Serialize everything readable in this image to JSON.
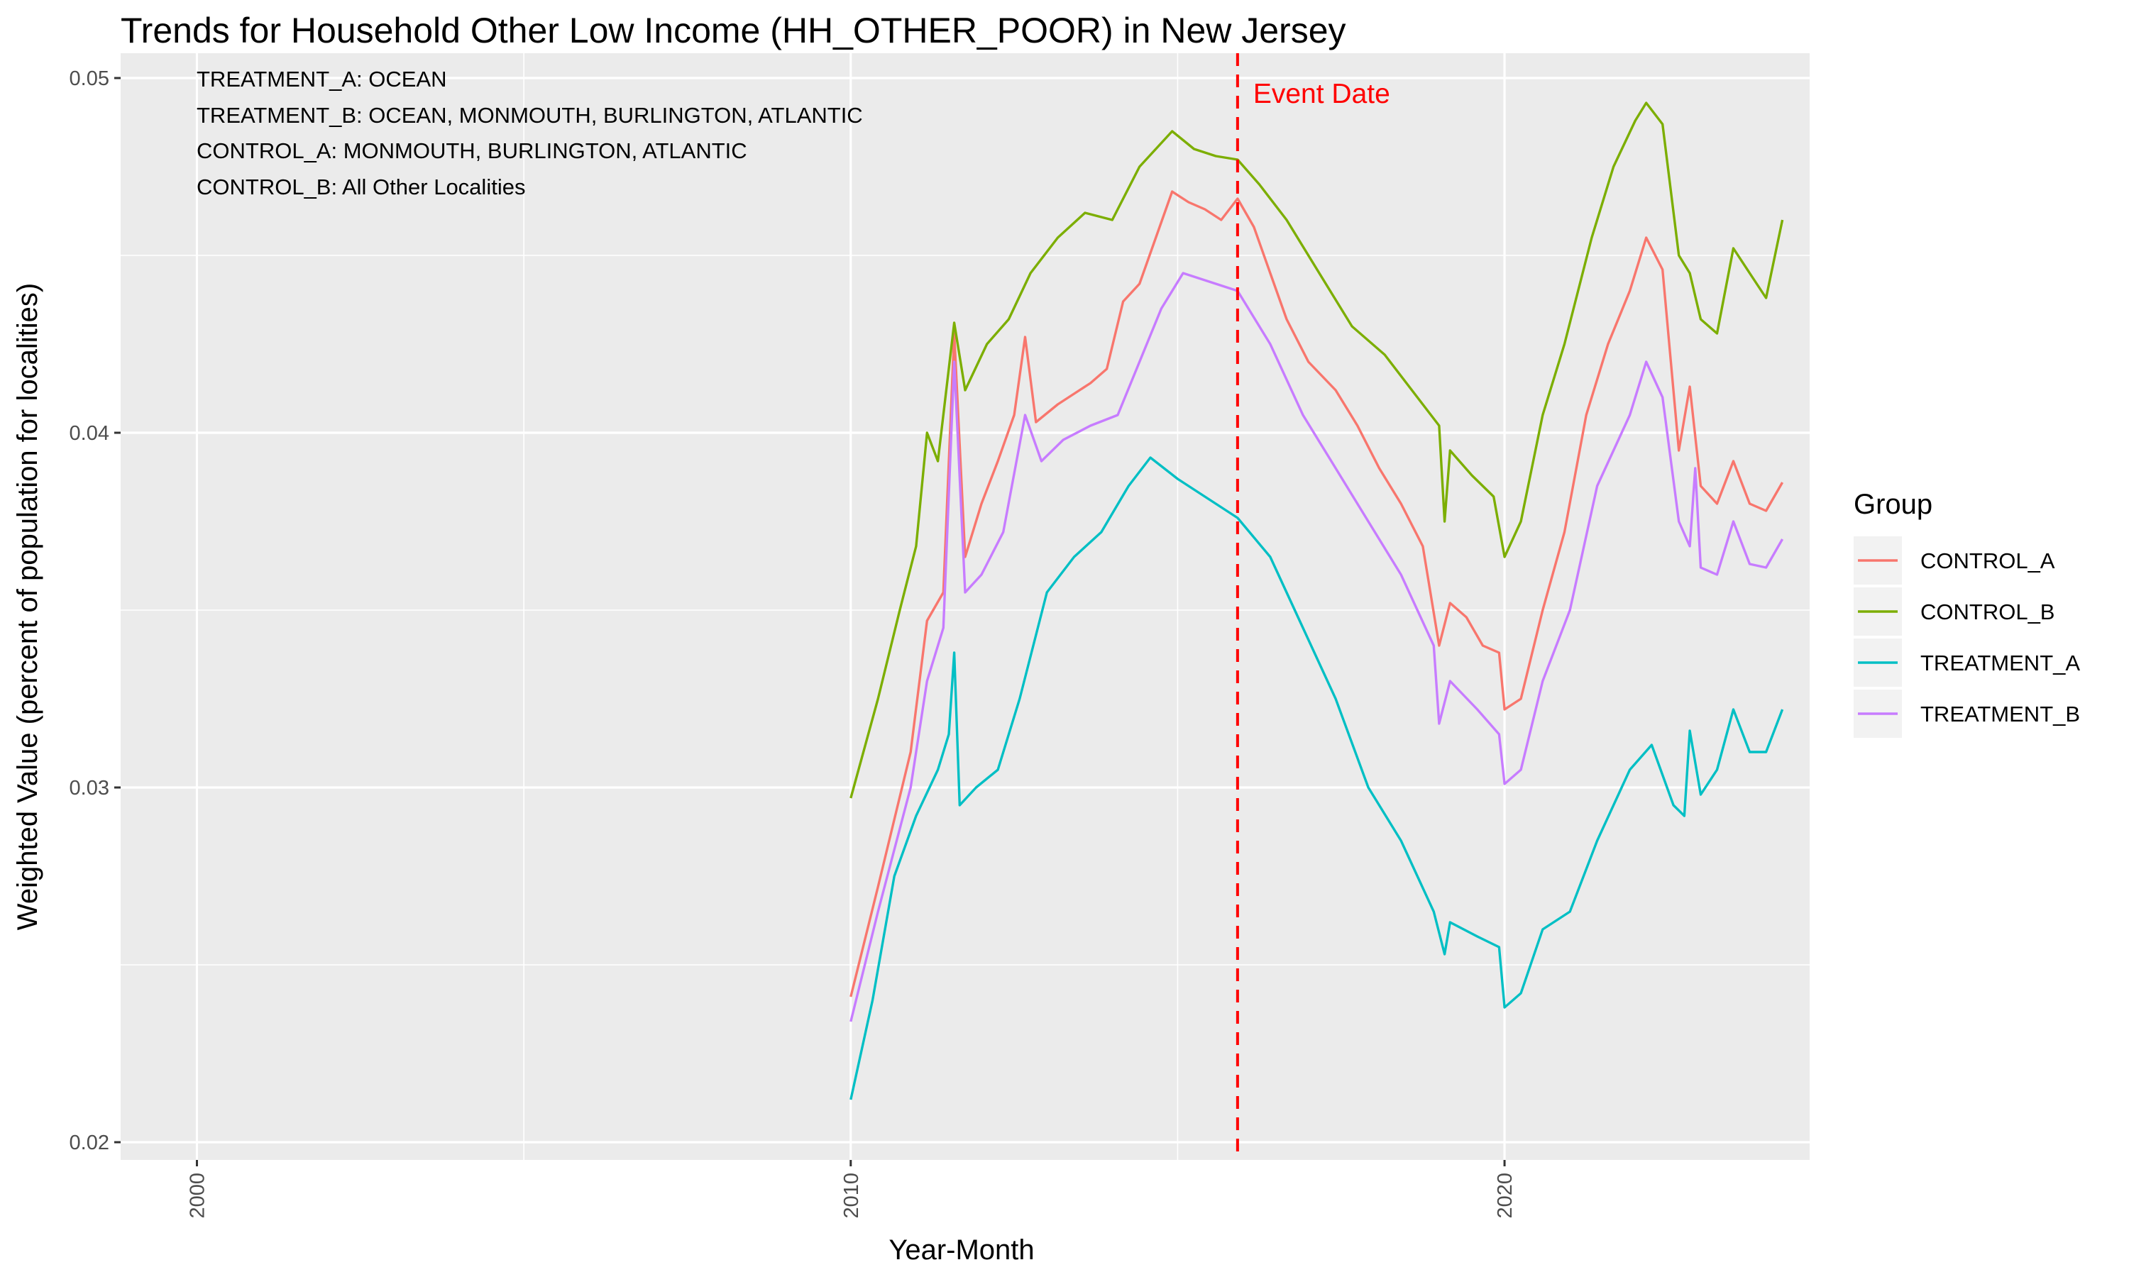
{
  "chart_data": {
    "type": "line",
    "title": "Trends for Household Other Low Income (HH_OTHER_POOR) in New Jersey",
    "xlabel": "Year-Month",
    "ylabel": "Weighted Value (percent of population for localities)",
    "xlim": [
      "1998-11",
      "2024-09"
    ],
    "ylim": [
      0.0195,
      0.0507
    ],
    "x_ticks": [
      "2000",
      "2010",
      "2020"
    ],
    "y_ticks": [
      "0.02",
      "0.03",
      "0.04",
      "0.05"
    ],
    "grid": true,
    "legend": {
      "title": "Group",
      "position": "right"
    },
    "annotations": [
      "TREATMENT_A: OCEAN",
      "TREATMENT_B: OCEAN, MONMOUTH, BURLINGTON, ATLANTIC",
      "CONTROL_A: MONMOUTH, BURLINGTON, ATLANTIC",
      "CONTROL_B: All Other Localities"
    ],
    "event": {
      "label": "Event Date",
      "x": "2015-12",
      "color": "#FF0000"
    },
    "series": [
      {
        "name": "CONTROL_A",
        "color": "#F8766D",
        "points": [
          [
            "2010-01",
            0.0241
          ],
          [
            "2010-06",
            0.0272
          ],
          [
            "2010-12",
            0.031
          ],
          [
            "2011-03",
            0.0347
          ],
          [
            "2011-06",
            0.0355
          ],
          [
            "2011-08",
            0.0428
          ],
          [
            "2011-10",
            0.0365
          ],
          [
            "2012-01",
            0.038
          ],
          [
            "2012-04",
            0.0392
          ],
          [
            "2012-07",
            0.0405
          ],
          [
            "2012-09",
            0.0427
          ],
          [
            "2012-11",
            0.0403
          ],
          [
            "2013-03",
            0.0408
          ],
          [
            "2013-06",
            0.0411
          ],
          [
            "2013-09",
            0.0414
          ],
          [
            "2013-12",
            0.0418
          ],
          [
            "2014-03",
            0.0437
          ],
          [
            "2014-06",
            0.0442
          ],
          [
            "2014-09",
            0.0455
          ],
          [
            "2014-12",
            0.0468
          ],
          [
            "2015-03",
            0.0465
          ],
          [
            "2015-06",
            0.0463
          ],
          [
            "2015-09",
            0.046
          ],
          [
            "2015-12",
            0.0466
          ],
          [
            "2016-03",
            0.0458
          ],
          [
            "2016-06",
            0.0445
          ],
          [
            "2016-09",
            0.0432
          ],
          [
            "2017-01",
            0.042
          ],
          [
            "2017-06",
            0.0412
          ],
          [
            "2017-10",
            0.0402
          ],
          [
            "2018-02",
            0.039
          ],
          [
            "2018-06",
            0.038
          ],
          [
            "2018-10",
            0.0368
          ],
          [
            "2019-01",
            0.034
          ],
          [
            "2019-03",
            0.0352
          ],
          [
            "2019-06",
            0.0348
          ],
          [
            "2019-09",
            0.034
          ],
          [
            "2019-12",
            0.0338
          ],
          [
            "2020-01",
            0.0322
          ],
          [
            "2020-04",
            0.0325
          ],
          [
            "2020-08",
            0.035
          ],
          [
            "2020-12",
            0.0372
          ],
          [
            "2021-04",
            0.0405
          ],
          [
            "2021-08",
            0.0425
          ],
          [
            "2021-12",
            0.044
          ],
          [
            "2022-03",
            0.0455
          ],
          [
            "2022-06",
            0.0446
          ],
          [
            "2022-09",
            0.0395
          ],
          [
            "2022-11",
            0.0413
          ],
          [
            "2023-01",
            0.0385
          ],
          [
            "2023-04",
            0.038
          ],
          [
            "2023-07",
            0.0392
          ],
          [
            "2023-10",
            0.038
          ],
          [
            "2024-01",
            0.0378
          ],
          [
            "2024-04",
            0.0386
          ]
        ]
      },
      {
        "name": "CONTROL_B",
        "color": "#7CAE00",
        "points": [
          [
            "2010-01",
            0.0297
          ],
          [
            "2010-06",
            0.0325
          ],
          [
            "2010-10",
            0.035
          ],
          [
            "2011-01",
            0.0368
          ],
          [
            "2011-03",
            0.04
          ],
          [
            "2011-05",
            0.0392
          ],
          [
            "2011-08",
            0.0431
          ],
          [
            "2011-10",
            0.0412
          ],
          [
            "2012-02",
            0.0425
          ],
          [
            "2012-06",
            0.0432
          ],
          [
            "2012-10",
            0.0445
          ],
          [
            "2013-03",
            0.0455
          ],
          [
            "2013-08",
            0.0462
          ],
          [
            "2014-01",
            0.046
          ],
          [
            "2014-06",
            0.0475
          ],
          [
            "2014-12",
            0.0485
          ],
          [
            "2015-04",
            0.048
          ],
          [
            "2015-08",
            0.0478
          ],
          [
            "2015-12",
            0.0477
          ],
          [
            "2016-04",
            0.047
          ],
          [
            "2016-09",
            0.046
          ],
          [
            "2017-03",
            0.0445
          ],
          [
            "2017-09",
            0.043
          ],
          [
            "2018-03",
            0.0422
          ],
          [
            "2018-09",
            0.041
          ],
          [
            "2019-01",
            0.0402
          ],
          [
            "2019-02",
            0.0375
          ],
          [
            "2019-03",
            0.0395
          ],
          [
            "2019-07",
            0.0388
          ],
          [
            "2019-11",
            0.0382
          ],
          [
            "2020-01",
            0.0365
          ],
          [
            "2020-04",
            0.0375
          ],
          [
            "2020-08",
            0.0405
          ],
          [
            "2020-12",
            0.0425
          ],
          [
            "2021-05",
            0.0455
          ],
          [
            "2021-09",
            0.0475
          ],
          [
            "2022-01",
            0.0488
          ],
          [
            "2022-03",
            0.0493
          ],
          [
            "2022-06",
            0.0487
          ],
          [
            "2022-09",
            0.045
          ],
          [
            "2022-11",
            0.0445
          ],
          [
            "2023-01",
            0.0432
          ],
          [
            "2023-04",
            0.0428
          ],
          [
            "2023-07",
            0.0452
          ],
          [
            "2023-10",
            0.0445
          ],
          [
            "2024-01",
            0.0438
          ],
          [
            "2024-04",
            0.046
          ]
        ]
      },
      {
        "name": "TREATMENT_A",
        "color": "#00BFC4",
        "points": [
          [
            "2010-01",
            0.0212
          ],
          [
            "2010-05",
            0.024
          ],
          [
            "2010-09",
            0.0275
          ],
          [
            "2011-01",
            0.0292
          ],
          [
            "2011-05",
            0.0305
          ],
          [
            "2011-07",
            0.0315
          ],
          [
            "2011-08",
            0.0338
          ],
          [
            "2011-09",
            0.0295
          ],
          [
            "2011-12",
            0.03
          ],
          [
            "2012-04",
            0.0305
          ],
          [
            "2012-08",
            0.0325
          ],
          [
            "2013-01",
            0.0355
          ],
          [
            "2013-06",
            0.0365
          ],
          [
            "2013-11",
            0.0372
          ],
          [
            "2014-04",
            0.0385
          ],
          [
            "2014-08",
            0.0393
          ],
          [
            "2015-01",
            0.0387
          ],
          [
            "2015-06",
            0.0382
          ],
          [
            "2015-12",
            0.0376
          ],
          [
            "2016-06",
            0.0365
          ],
          [
            "2016-12",
            0.0345
          ],
          [
            "2017-06",
            0.0325
          ],
          [
            "2017-12",
            0.03
          ],
          [
            "2018-06",
            0.0285
          ],
          [
            "2018-12",
            0.0265
          ],
          [
            "2019-02",
            0.0253
          ],
          [
            "2019-03",
            0.0262
          ],
          [
            "2019-08",
            0.0258
          ],
          [
            "2019-12",
            0.0255
          ],
          [
            "2020-01",
            0.0238
          ],
          [
            "2020-04",
            0.0242
          ],
          [
            "2020-08",
            0.026
          ],
          [
            "2021-01",
            0.0265
          ],
          [
            "2021-06",
            0.0285
          ],
          [
            "2021-12",
            0.0305
          ],
          [
            "2022-04",
            0.0312
          ],
          [
            "2022-08",
            0.0295
          ],
          [
            "2022-10",
            0.0292
          ],
          [
            "2022-11",
            0.0316
          ],
          [
            "2023-01",
            0.0298
          ],
          [
            "2023-04",
            0.0305
          ],
          [
            "2023-07",
            0.0322
          ],
          [
            "2023-10",
            0.031
          ],
          [
            "2024-01",
            0.031
          ],
          [
            "2024-04",
            0.0322
          ]
        ]
      },
      {
        "name": "TREATMENT_B",
        "color": "#C77CFF",
        "points": [
          [
            "2010-01",
            0.0234
          ],
          [
            "2010-06",
            0.0265
          ],
          [
            "2010-12",
            0.03
          ],
          [
            "2011-03",
            0.033
          ],
          [
            "2011-06",
            0.0345
          ],
          [
            "2011-08",
            0.042
          ],
          [
            "2011-10",
            0.0355
          ],
          [
            "2012-01",
            0.036
          ],
          [
            "2012-05",
            0.0372
          ],
          [
            "2012-09",
            0.0405
          ],
          [
            "2012-12",
            0.0392
          ],
          [
            "2013-04",
            0.0398
          ],
          [
            "2013-09",
            0.0402
          ],
          [
            "2014-02",
            0.0405
          ],
          [
            "2014-06",
            0.042
          ],
          [
            "2014-10",
            0.0435
          ],
          [
            "2015-02",
            0.0445
          ],
          [
            "2015-06",
            0.0443
          ],
          [
            "2015-12",
            0.044
          ],
          [
            "2016-06",
            0.0425
          ],
          [
            "2016-12",
            0.0405
          ],
          [
            "2017-06",
            0.039
          ],
          [
            "2017-12",
            0.0375
          ],
          [
            "2018-06",
            0.036
          ],
          [
            "2018-12",
            0.034
          ],
          [
            "2019-01",
            0.0318
          ],
          [
            "2019-03",
            0.033
          ],
          [
            "2019-08",
            0.0322
          ],
          [
            "2019-12",
            0.0315
          ],
          [
            "2020-01",
            0.0301
          ],
          [
            "2020-04",
            0.0305
          ],
          [
            "2020-08",
            0.033
          ],
          [
            "2021-01",
            0.035
          ],
          [
            "2021-06",
            0.0385
          ],
          [
            "2021-12",
            0.0405
          ],
          [
            "2022-03",
            0.042
          ],
          [
            "2022-06",
            0.041
          ],
          [
            "2022-09",
            0.0375
          ],
          [
            "2022-11",
            0.0368
          ],
          [
            "2022-12",
            0.039
          ],
          [
            "2023-01",
            0.0362
          ],
          [
            "2023-04",
            0.036
          ],
          [
            "2023-07",
            0.0375
          ],
          [
            "2023-10",
            0.0363
          ],
          [
            "2024-01",
            0.0362
          ],
          [
            "2024-04",
            0.037
          ]
        ]
      }
    ]
  }
}
